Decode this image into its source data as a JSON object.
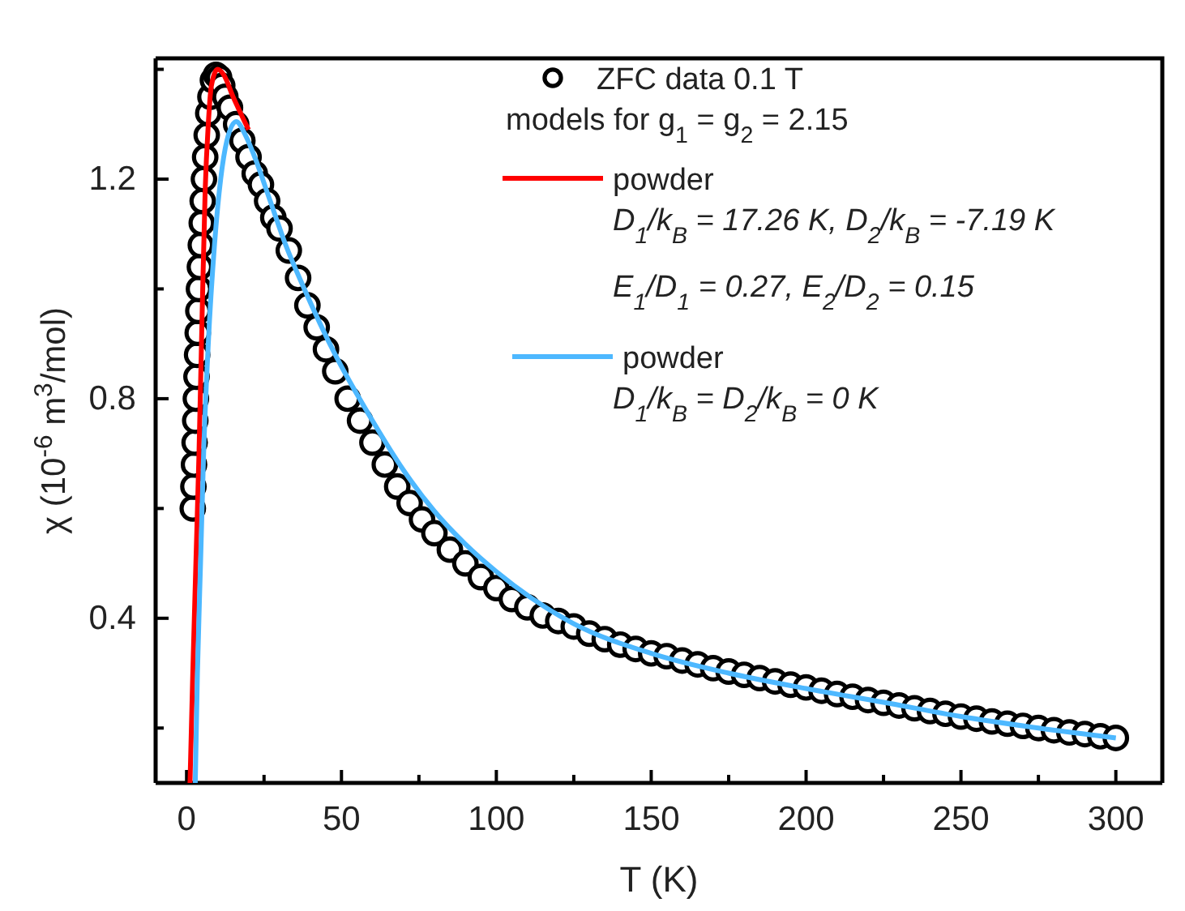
{
  "chart_data": {
    "type": "line",
    "xlabel": "T (K)",
    "ylabel": "χ (10$^{-6}$ m$^{3}$/mol)",
    "xlim": [
      -10,
      315
    ],
    "ylim": [
      0.1,
      1.42
    ],
    "xticks": [
      0,
      {
        "value": 25,
        "label": null
      },
      50,
      {
        "value": 75,
        "label": null
      },
      100,
      {
        "value": 125,
        "label": null
      },
      150,
      {
        "value": 175,
        "label": null
      },
      200,
      {
        "value": 225,
        "label": null
      },
      250,
      {
        "value": 275,
        "label": null
      },
      300
    ],
    "yticks": [
      {
        "value": 0.2,
        "label": null
      },
      0.4,
      {
        "value": 0.6,
        "label": null
      },
      0.8,
      {
        "value": 1.0,
        "label": null
      },
      1.2,
      {
        "value": 1.4,
        "label": null
      }
    ],
    "grid": false,
    "legend": "top right",
    "annotations": [
      "models for g$_{1}$ = g$_{2}$ = 2.15",
      "D$_{1}$/k$_{B}$ = 17.26 K, D$_{2}$/k$_{B}$ = -7.19 K",
      "E$_{1}$/D$_{1}$ = 0.27, E$_{2}$/D$_{2}$ = 0.15",
      "D$_{1}$/k$_{B}$ = D$_{2}$/k$_{B}$ = 0 K"
    ],
    "series": [
      {
        "name": "ZFC data 0.1 T",
        "type": "scatter",
        "marker": "circle",
        "color": "#000000",
        "x": [
          2,
          2.2,
          2.4,
          2.6,
          2.8,
          3,
          3.2,
          3.4,
          3.6,
          3.8,
          4,
          4.3,
          4.6,
          4.9,
          5.2,
          5.6,
          6,
          6.5,
          7,
          7.7,
          8.5,
          9.5,
          10.5,
          11.5,
          12.5,
          14,
          16,
          18,
          20,
          22,
          24,
          26,
          28,
          30,
          33,
          36,
          39,
          42,
          45,
          48,
          52,
          56,
          60,
          64,
          68,
          72,
          76,
          80,
          85,
          90,
          95,
          100,
          105,
          110,
          115,
          120,
          125,
          130,
          135,
          140,
          145,
          150,
          155,
          160,
          165,
          170,
          175,
          180,
          185,
          190,
          195,
          200,
          205,
          210,
          215,
          220,
          225,
          230,
          235,
          240,
          245,
          250,
          255,
          260,
          265,
          270,
          275,
          280,
          285,
          290,
          295,
          300
        ],
        "values": [
          0.6,
          0.64,
          0.68,
          0.72,
          0.76,
          0.8,
          0.84,
          0.88,
          0.92,
          0.96,
          1.0,
          1.04,
          1.08,
          1.12,
          1.16,
          1.2,
          1.24,
          1.28,
          1.32,
          1.35,
          1.38,
          1.39,
          1.385,
          1.37,
          1.35,
          1.33,
          1.3,
          1.27,
          1.24,
          1.21,
          1.19,
          1.16,
          1.13,
          1.11,
          1.07,
          1.02,
          0.97,
          0.93,
          0.89,
          0.85,
          0.8,
          0.76,
          0.72,
          0.68,
          0.64,
          0.61,
          0.58,
          0.555,
          0.525,
          0.5,
          0.475,
          0.455,
          0.435,
          0.42,
          0.405,
          0.395,
          0.385,
          0.372,
          0.362,
          0.352,
          0.344,
          0.336,
          0.331,
          0.323,
          0.316,
          0.309,
          0.303,
          0.297,
          0.291,
          0.285,
          0.279,
          0.274,
          0.268,
          0.262,
          0.257,
          0.251,
          0.246,
          0.241,
          0.236,
          0.231,
          0.226,
          0.221,
          0.217,
          0.212,
          0.208,
          0.204,
          0.2,
          0.196,
          0.192,
          0.189,
          0.185,
          0.182
        ]
      },
      {
        "name": "powder",
        "marker": "none",
        "color": "#ff0000",
        "x": [
          1.1,
          2,
          3,
          4,
          5,
          6,
          7,
          8,
          10,
          12,
          15,
          20
        ],
        "values": [
          0.1,
          0.3,
          0.5,
          0.7,
          0.95,
          1.18,
          1.3,
          1.37,
          1.4,
          1.39,
          1.35,
          1.29
        ]
      },
      {
        "name": "powder",
        "marker": "none",
        "color": "#4db8ff",
        "x": [
          2.8,
          3.5,
          4.5,
          5.5,
          7,
          9,
          11,
          13,
          16,
          19,
          22,
          27,
          32,
          38,
          48,
          60,
          70,
          80,
          90,
          100,
          125,
          150,
          175,
          200,
          225,
          250,
          275,
          300
        ],
        "values": [
          0.1,
          0.3,
          0.5,
          0.7,
          0.9,
          1.08,
          1.2,
          1.27,
          1.305,
          1.28,
          1.24,
          1.16,
          1.08,
          1.0,
          0.88,
          0.76,
          0.67,
          0.595,
          0.535,
          0.485,
          0.39,
          0.336,
          0.3,
          0.272,
          0.247,
          0.221,
          0.2,
          0.182
        ]
      }
    ]
  }
}
